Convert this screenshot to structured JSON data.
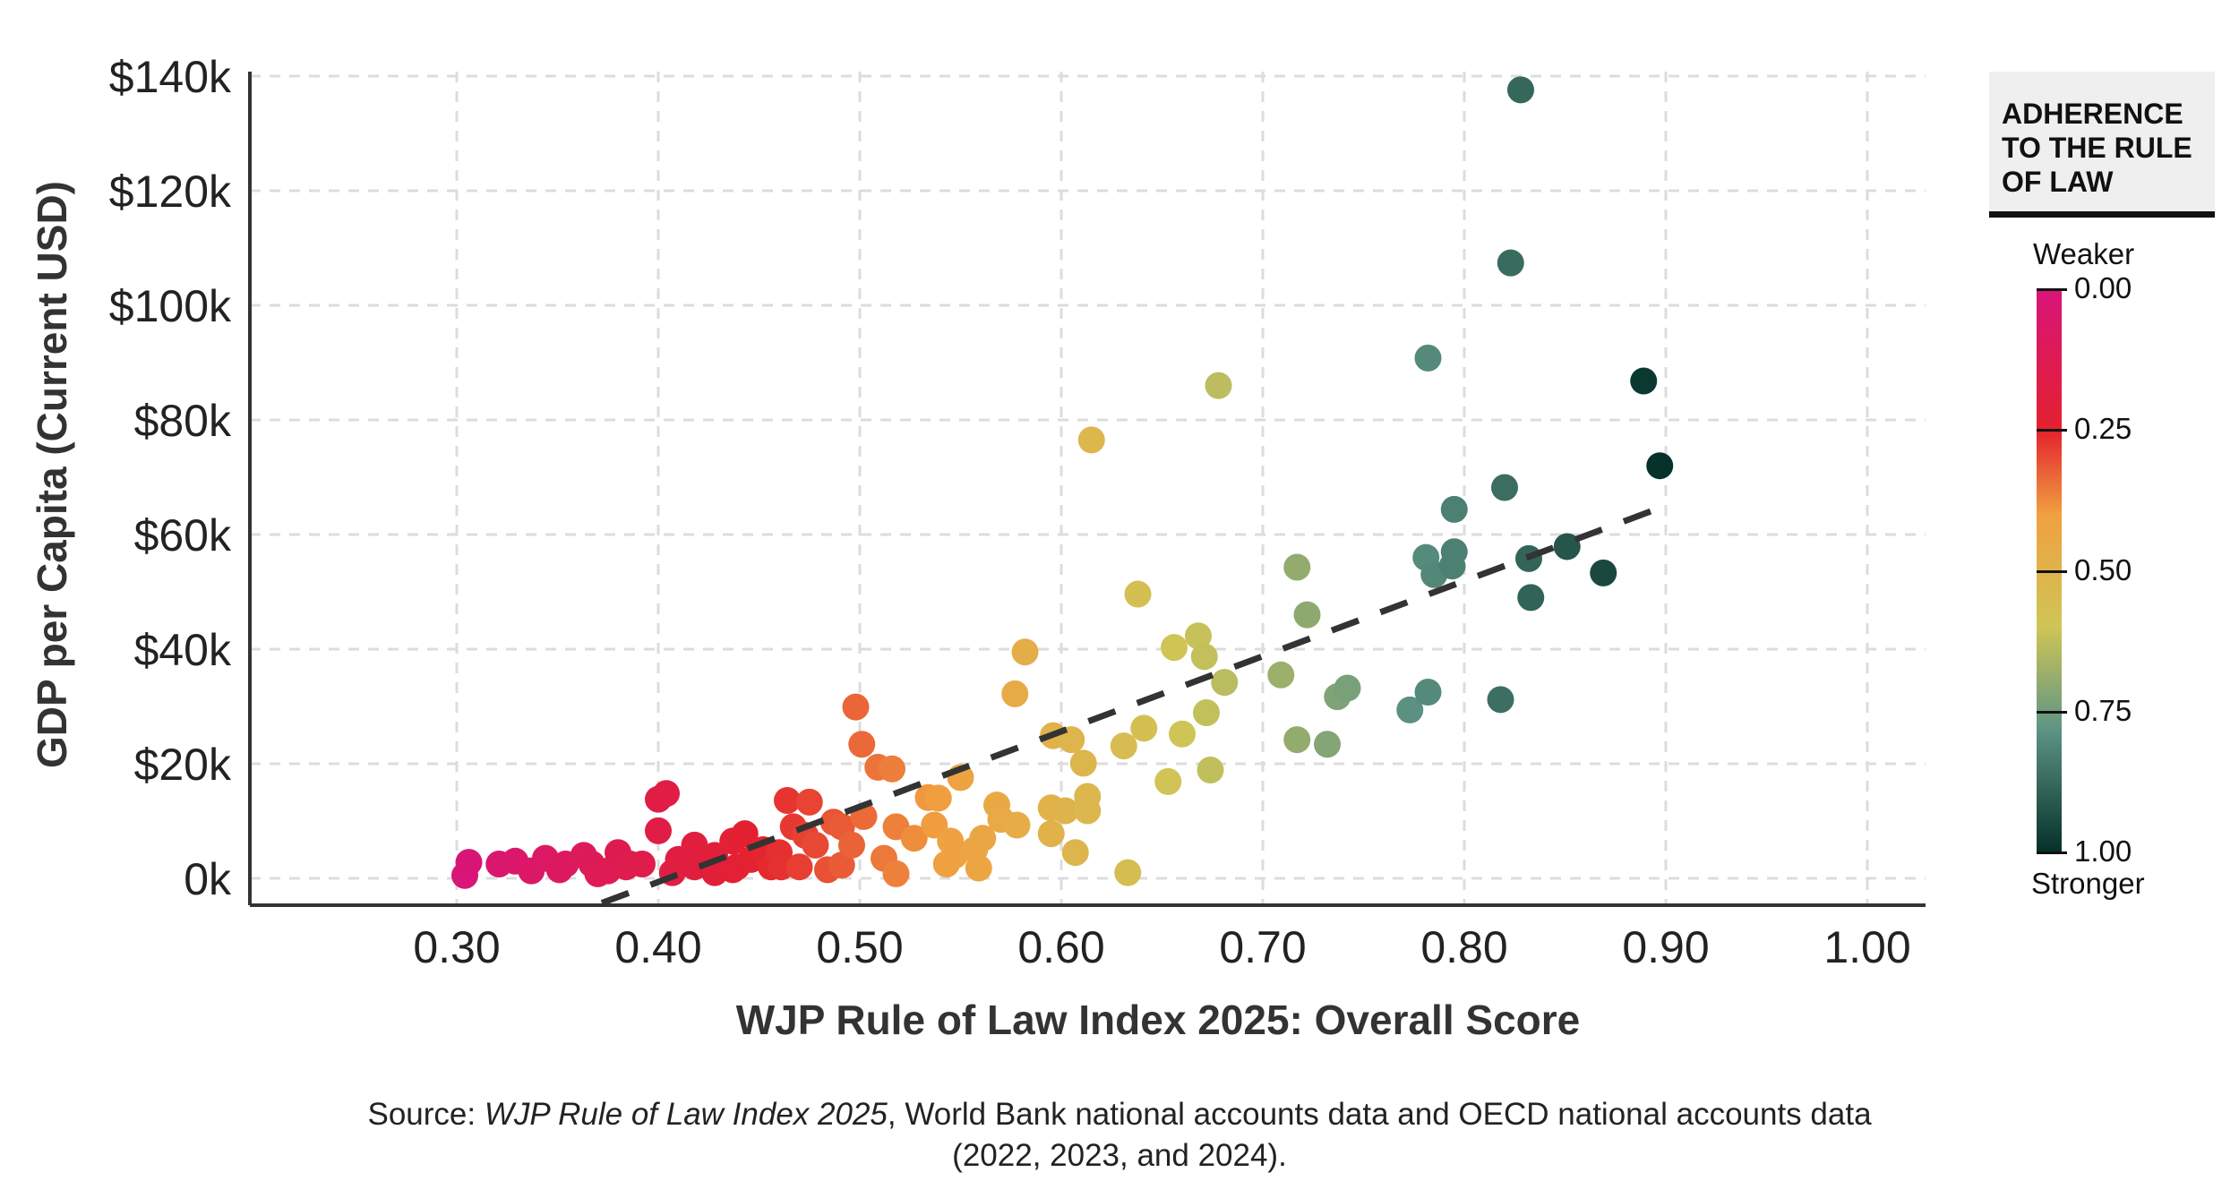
{
  "chart_data": {
    "type": "scatter",
    "xlabel": "WJP Rule of Law Index 2025: Overall Score",
    "ylabel": "GDP per Capita (Current USD)",
    "xlim": [
      0.22,
      1.03
    ],
    "ylim": [
      -5,
      143
    ],
    "x_ticks": [
      "0.30",
      "0.40",
      "0.50",
      "0.60",
      "0.70",
      "0.80",
      "0.90",
      "1.00"
    ],
    "x_tick_values": [
      0.3,
      0.4,
      0.5,
      0.6,
      0.7,
      0.8,
      0.9,
      1.0
    ],
    "y_ticks": [
      "0k",
      "$20k",
      "$40k",
      "$60k",
      "$80k",
      "$100k",
      "$120k",
      "$140k"
    ],
    "y_tick_values": [
      0,
      20,
      40,
      60,
      80,
      100,
      120,
      140
    ],
    "y_units": "thousand USD",
    "grid": true,
    "trendline": {
      "style": "dashed",
      "color": "#333333",
      "start": [
        0.372,
        -4.3
      ],
      "end": [
        0.899,
        64.9
      ]
    },
    "points": [
      [
        0.828,
        137.6
      ],
      [
        0.823,
        107.4
      ],
      [
        0.782,
        90.8
      ],
      [
        0.889,
        86.8
      ],
      [
        0.897,
        72.0
      ],
      [
        0.82,
        68.2
      ],
      [
        0.795,
        64.4
      ],
      [
        0.781,
        56.0
      ],
      [
        0.795,
        57.0
      ],
      [
        0.785,
        53.0
      ],
      [
        0.794,
        54.5
      ],
      [
        0.832,
        55.8
      ],
      [
        0.851,
        57.9
      ],
      [
        0.833,
        49.0
      ],
      [
        0.869,
        53.3
      ],
      [
        0.818,
        31.2
      ],
      [
        0.782,
        32.5
      ],
      [
        0.773,
        29.4
      ],
      [
        0.742,
        33.2
      ],
      [
        0.737,
        31.7
      ],
      [
        0.722,
        46.0
      ],
      [
        0.717,
        54.3
      ],
      [
        0.709,
        35.5
      ],
      [
        0.717,
        24.2
      ],
      [
        0.732,
        23.4
      ],
      [
        0.678,
        86.0
      ],
      [
        0.615,
        76.5
      ],
      [
        0.638,
        49.6
      ],
      [
        0.668,
        42.3
      ],
      [
        0.671,
        38.7
      ],
      [
        0.656,
        40.3
      ],
      [
        0.681,
        34.2
      ],
      [
        0.672,
        28.9
      ],
      [
        0.66,
        25.2
      ],
      [
        0.641,
        26.2
      ],
      [
        0.631,
        23.1
      ],
      [
        0.653,
        16.9
      ],
      [
        0.674,
        18.9
      ],
      [
        0.633,
        1.0
      ],
      [
        0.582,
        39.5
      ],
      [
        0.577,
        32.2
      ],
      [
        0.596,
        24.9
      ],
      [
        0.605,
        24.2
      ],
      [
        0.611,
        20.1
      ],
      [
        0.613,
        14.3
      ],
      [
        0.613,
        11.8
      ],
      [
        0.602,
        11.8
      ],
      [
        0.595,
        7.8
      ],
      [
        0.607,
        4.5
      ],
      [
        0.595,
        12.3
      ],
      [
        0.498,
        29.9
      ],
      [
        0.501,
        23.4
      ],
      [
        0.509,
        19.4
      ],
      [
        0.516,
        19.1
      ],
      [
        0.55,
        17.6
      ],
      [
        0.534,
        14.1
      ],
      [
        0.539,
        14.0
      ],
      [
        0.568,
        12.8
      ],
      [
        0.57,
        10.3
      ],
      [
        0.578,
        9.3
      ],
      [
        0.502,
        10.8
      ],
      [
        0.491,
        9.0
      ],
      [
        0.487,
        9.8
      ],
      [
        0.518,
        9.0
      ],
      [
        0.537,
        9.3
      ],
      [
        0.527,
        7.0
      ],
      [
        0.545,
        6.5
      ],
      [
        0.561,
        7.0
      ],
      [
        0.557,
        5.0
      ],
      [
        0.547,
        4.0
      ],
      [
        0.543,
        2.5
      ],
      [
        0.559,
        1.8
      ],
      [
        0.518,
        0.8
      ],
      [
        0.512,
        3.5
      ],
      [
        0.496,
        5.8
      ],
      [
        0.484,
        1.5
      ],
      [
        0.491,
        2.3
      ],
      [
        0.404,
        14.8
      ],
      [
        0.4,
        13.8
      ],
      [
        0.4,
        8.3
      ],
      [
        0.464,
        13.6
      ],
      [
        0.475,
        13.3
      ],
      [
        0.467,
        9.0
      ],
      [
        0.473,
        7.5
      ],
      [
        0.478,
        5.8
      ],
      [
        0.443,
        7.8
      ],
      [
        0.437,
        6.5
      ],
      [
        0.418,
        5.8
      ],
      [
        0.452,
        5.0
      ],
      [
        0.46,
        4.5
      ],
      [
        0.446,
        3.3
      ],
      [
        0.456,
        2.0
      ],
      [
        0.47,
        2.0
      ],
      [
        0.461,
        2.0
      ],
      [
        0.437,
        1.5
      ],
      [
        0.428,
        1.0
      ],
      [
        0.418,
        2.0
      ],
      [
        0.41,
        3.3
      ],
      [
        0.407,
        1.0
      ],
      [
        0.392,
        2.5
      ],
      [
        0.386,
        2.5
      ],
      [
        0.38,
        4.5
      ],
      [
        0.375,
        1.3
      ],
      [
        0.367,
        2.5
      ],
      [
        0.363,
        4.0
      ],
      [
        0.354,
        2.5
      ],
      [
        0.344,
        3.5
      ],
      [
        0.337,
        1.3
      ],
      [
        0.329,
        3.0
      ],
      [
        0.321,
        2.5
      ],
      [
        0.306,
        2.8
      ],
      [
        0.304,
        0.5
      ],
      [
        0.351,
        1.5
      ],
      [
        0.37,
        0.8
      ],
      [
        0.384,
        2.0
      ],
      [
        0.428,
        4.0
      ],
      [
        0.439,
        2.0
      ]
    ]
  },
  "legend": {
    "title": "ADHERENCE TO THE RULE OF LAW",
    "top_label": "Weaker",
    "bottom_label": "Stronger",
    "ticks": [
      "0.00",
      "0.25",
      "0.50",
      "0.75",
      "1.00"
    ],
    "colors": [
      "#d8157a",
      "#e4212e",
      "#f0a040",
      "#cfc556",
      "#5e9584",
      "#05302a"
    ]
  },
  "source": {
    "prefix": "Source: ",
    "italic": "WJP Rule of Law Index 2025",
    "rest": ", World Bank national accounts data and OECD national accounts data",
    "line2": "(2022, 2023, and 2024)."
  }
}
